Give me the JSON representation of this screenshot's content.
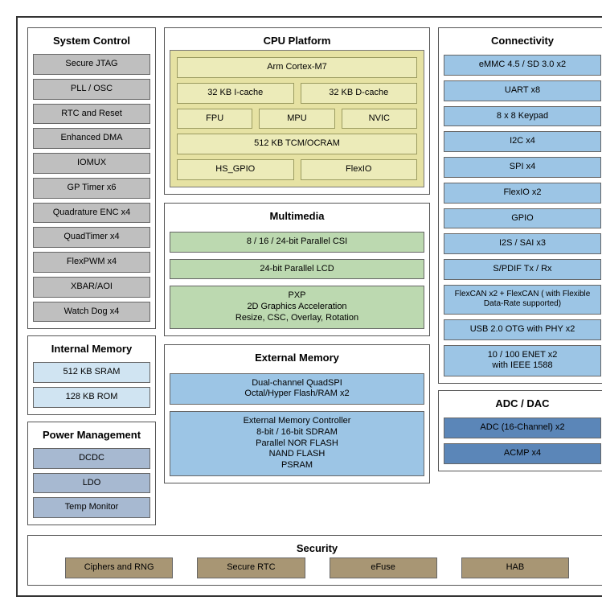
{
  "system_control": {
    "title": "System Control",
    "items": [
      "Secure JTAG",
      "PLL / OSC",
      "RTC and Reset",
      "Enhanced DMA",
      "IOMUX",
      "GP Timer x6",
      "Quadrature ENC x4",
      "QuadTimer x4",
      "FlexPWM x4",
      "XBAR/AOI",
      "Watch Dog x4"
    ],
    "color": "#bfbfbf"
  },
  "internal_memory": {
    "title": "Internal Memory",
    "items": [
      "512 KB SRAM",
      "128 KB ROM"
    ],
    "color": "#d0e4f2"
  },
  "power_management": {
    "title": "Power Management",
    "items": [
      "DCDC",
      "LDO",
      "Temp Monitor"
    ],
    "color": "#a7b9d1"
  },
  "cpu_platform": {
    "title": "CPU Platform",
    "core": "Arm Cortex-M7",
    "icache": "32 KB I-cache",
    "dcache": "32 KB D-cache",
    "fpu": "FPU",
    "mpu": "MPU",
    "nvic": "NVIC",
    "tcm": "512 KB TCM/OCRAM",
    "hs_gpio": "HS_GPIO",
    "flexio": "FlexIO",
    "container_color": "#e6e2a3"
  },
  "multimedia": {
    "title": "Multimedia",
    "csi": "8 / 16 / 24-bit Parallel CSI",
    "lcd": "24-bit Parallel LCD",
    "pxp_l1": "PXP",
    "pxp_l2": "2D Graphics Acceleration",
    "pxp_l3": "Resize, CSC, Overlay, Rotation",
    "color": "#bcd9b0"
  },
  "external_memory": {
    "title": "External Memory",
    "qspi_l1": "Dual-channel QuadSPI",
    "qspi_l2": "Octal/Hyper Flash/RAM x2",
    "ctrl_l1": "External Memory Controller",
    "ctrl_l2": "8-bit / 16-bit SDRAM",
    "ctrl_l3": "Parallel NOR FLASH",
    "ctrl_l4": "NAND FLASH",
    "ctrl_l5": "PSRAM",
    "color": "#9cc5e5"
  },
  "connectivity": {
    "title": "Connectivity",
    "items": [
      "eMMC 4.5 / SD 3.0 x2",
      "UART x8",
      "8 x 8 Keypad",
      "I2C x4",
      "SPI x4",
      "FlexIO x2",
      "GPIO",
      "I2S / SAI x3",
      "S/PDIF Tx / Rx",
      "FlexCAN x2  + FlexCAN ( with Flexible Data-Rate supported)",
      "USB 2.0 OTG with PHY x2",
      "10 / 100 ENET x2\nwith IEEE 1588"
    ],
    "color": "#9cc5e5"
  },
  "adc_dac": {
    "title": "ADC / DAC",
    "items": [
      "ADC (16-Channel) x2",
      "ACMP x4"
    ],
    "color": "#5b86b8"
  },
  "security": {
    "title": "Security",
    "items": [
      "Ciphers and RNG",
      "Secure RTC",
      "eFuse",
      "HAB"
    ],
    "color": "#a89674"
  }
}
